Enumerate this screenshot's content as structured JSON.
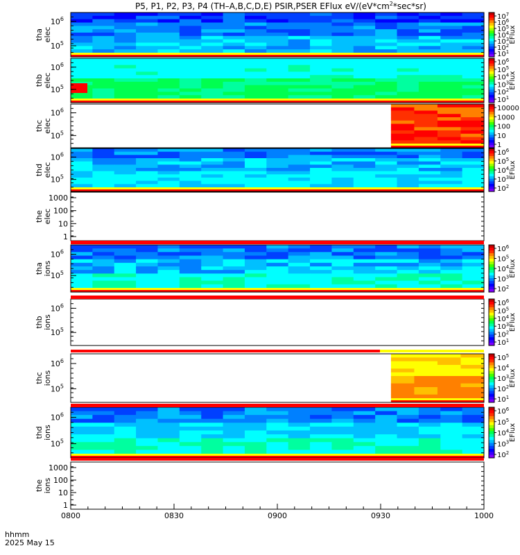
{
  "title_parts": [
    "P5, P1, P2, P3, P4 (TH–A,B,C,D,E) PSIR,PSER EFlux eV/(eV*cm",
    "2",
    "*sec*sr)"
  ],
  "colors": {
    "jet": [
      "#7f00ff",
      "#3b00ff",
      "#0000ff",
      "#0040ff",
      "#0080ff",
      "#00c0ff",
      "#00ffff",
      "#00ff9f",
      "#00ff50",
      "#40ff00",
      "#a0ff00",
      "#ffff00",
      "#ffc000",
      "#ff8000",
      "#ff3000",
      "#ff0000",
      "#c00000"
    ],
    "red_bar": "#ff0000",
    "yellow_bar": "#ffff00"
  },
  "bottom_axis": {
    "hhmm_label": "hhmm",
    "date_label": "2025 May 15",
    "ticks": [
      "0800",
      "0830",
      "0900",
      "0930",
      "1000"
    ]
  },
  "chart_data": {
    "type": "heatmap",
    "x_range": [
      "0800",
      "1000"
    ],
    "panels": [
      {
        "label_top": "tha",
        "label_bottom": "elec",
        "yticks": [
          {
            "base": "10",
            "exp": "6",
            "level": 0.2
          },
          {
            "base": "10",
            "exp": "5",
            "level": 0.75
          }
        ],
        "cbar_label": "EFlux",
        "cbar_ticks": [
          {
            "base": "10",
            "exp": "7"
          },
          {
            "base": "10",
            "exp": "6"
          },
          {
            "base": "10",
            "exp": "5"
          },
          {
            "base": "10",
            "exp": "4"
          },
          {
            "base": "10",
            "exp": "3"
          },
          {
            "base": "10",
            "exp": "2"
          },
          {
            "base": "10",
            "exp": "1"
          }
        ]
      },
      {
        "label_top": "thb",
        "label_bottom": "elec",
        "yticks": [
          {
            "base": "10",
            "exp": "6",
            "level": 0.2
          },
          {
            "base": "10",
            "exp": "5",
            "level": 0.7
          }
        ],
        "cbar_label": "EFlux",
        "cbar_ticks": [
          {
            "base": "10",
            "exp": "6"
          },
          {
            "base": "10",
            "exp": "5"
          },
          {
            "base": "10",
            "exp": "4"
          },
          {
            "base": "10",
            "exp": "3"
          },
          {
            "base": "10",
            "exp": "2"
          },
          {
            "base": "10",
            "exp": "1"
          }
        ]
      },
      {
        "label_top": "thc",
        "label_bottom": "elec",
        "yticks": [
          {
            "base": "10",
            "exp": "6",
            "level": 0.2
          },
          {
            "base": "10",
            "exp": "5",
            "level": 0.72
          }
        ],
        "cbar_label": "",
        "cbar_ticks": [
          {
            "text": "10000"
          },
          {
            "text": "1000"
          },
          {
            "text": "100"
          },
          {
            "text": "10"
          },
          {
            "text": "1"
          }
        ],
        "data_start": "0933"
      },
      {
        "label_top": "thd",
        "label_bottom": "elec",
        "yticks": [
          {
            "base": "10",
            "exp": "6",
            "level": 0.2
          },
          {
            "base": "10",
            "exp": "5",
            "level": 0.72
          }
        ],
        "cbar_label": "EFlux",
        "cbar_ticks": [
          {
            "base": "10",
            "exp": "6"
          },
          {
            "base": "10",
            "exp": "5"
          },
          {
            "base": "10",
            "exp": "4"
          },
          {
            "base": "10",
            "exp": "3"
          },
          {
            "base": "10",
            "exp": "2"
          }
        ]
      },
      {
        "label_top": "the",
        "label_bottom": "elec",
        "yticks": [
          {
            "text": "1000"
          },
          {
            "text": "100"
          },
          {
            "text": "10"
          },
          {
            "text": "1"
          }
        ],
        "empty": true
      },
      {
        "label_top": "tha",
        "label_bottom": "ions",
        "yticks": [
          {
            "base": "10",
            "exp": "6",
            "level": 0.2
          },
          {
            "base": "10",
            "exp": "5",
            "level": 0.65
          }
        ],
        "cbar_label": "EFlux",
        "cbar_ticks": [
          {
            "base": "10",
            "exp": "6"
          },
          {
            "base": "10",
            "exp": "5"
          },
          {
            "base": "10",
            "exp": "4"
          },
          {
            "base": "10",
            "exp": "3"
          },
          {
            "base": "10",
            "exp": "2"
          }
        ]
      },
      {
        "label_top": "thb",
        "label_bottom": "ions",
        "yticks": [
          {
            "base": "10",
            "exp": "6",
            "level": 0.2
          },
          {
            "base": "10",
            "exp": "5",
            "level": 0.72
          }
        ],
        "cbar_label": "EFlux",
        "cbar_ticks": [
          {
            "base": "10",
            "exp": "6"
          },
          {
            "base": "10",
            "exp": "5"
          },
          {
            "base": "10",
            "exp": "4"
          },
          {
            "base": "10",
            "exp": "3"
          },
          {
            "base": "10",
            "exp": "2"
          },
          {
            "base": "10",
            "exp": "1"
          }
        ],
        "empty": true
      },
      {
        "label_top": "thc",
        "label_bottom": "ions",
        "yticks": [
          {
            "base": "10",
            "exp": "6",
            "level": 0.2
          },
          {
            "base": "10",
            "exp": "5",
            "level": 0.72
          }
        ],
        "cbar_label": "EFlux",
        "cbar_ticks": [
          {
            "base": "10",
            "exp": "5"
          },
          {
            "base": "10",
            "exp": "4"
          },
          {
            "base": "10",
            "exp": "3"
          },
          {
            "base": "10",
            "exp": "2"
          },
          {
            "base": "10",
            "exp": "1"
          }
        ],
        "data_start": "0933"
      },
      {
        "label_top": "thd",
        "label_bottom": "ions",
        "yticks": [
          {
            "base": "10",
            "exp": "6",
            "level": 0.2
          },
          {
            "base": "10",
            "exp": "5",
            "level": 0.72
          }
        ],
        "cbar_label": "EFlux",
        "cbar_ticks": [
          {
            "base": "10",
            "exp": "6"
          },
          {
            "base": "10",
            "exp": "5"
          },
          {
            "base": "10",
            "exp": "4"
          },
          {
            "base": "10",
            "exp": "3"
          },
          {
            "base": "10",
            "exp": "2"
          }
        ]
      },
      {
        "label_top": "the",
        "label_bottom": "ions",
        "yticks": [
          {
            "text": "1000"
          },
          {
            "text": "100"
          },
          {
            "text": "10"
          },
          {
            "text": "1"
          }
        ],
        "empty": true
      }
    ]
  }
}
